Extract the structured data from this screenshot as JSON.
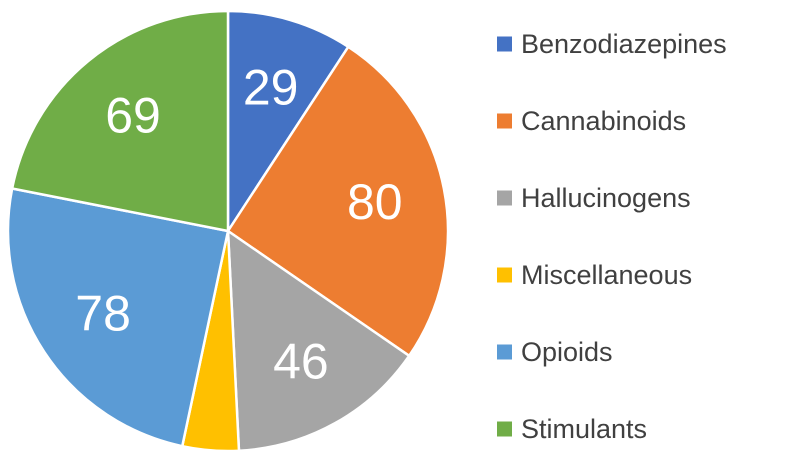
{
  "chart_data": {
    "type": "pie",
    "categories": [
      "Benzodiazepines",
      "Cannabinoids",
      "Hallucinogens",
      "Miscellaneous",
      "Opioids",
      "Stimulants"
    ],
    "values": [
      29,
      80,
      46,
      13,
      78,
      69
    ],
    "data_labels": [
      "29",
      "80",
      "46",
      "",
      "78",
      "69"
    ],
    "colors": [
      "#4472C4",
      "#ED7D31",
      "#A5A5A5",
      "#FFC000",
      "#5B9BD5",
      "#70AD47"
    ],
    "start_angle_deg": 0,
    "direction": "clockwise",
    "legend_position": "right",
    "title": ""
  }
}
